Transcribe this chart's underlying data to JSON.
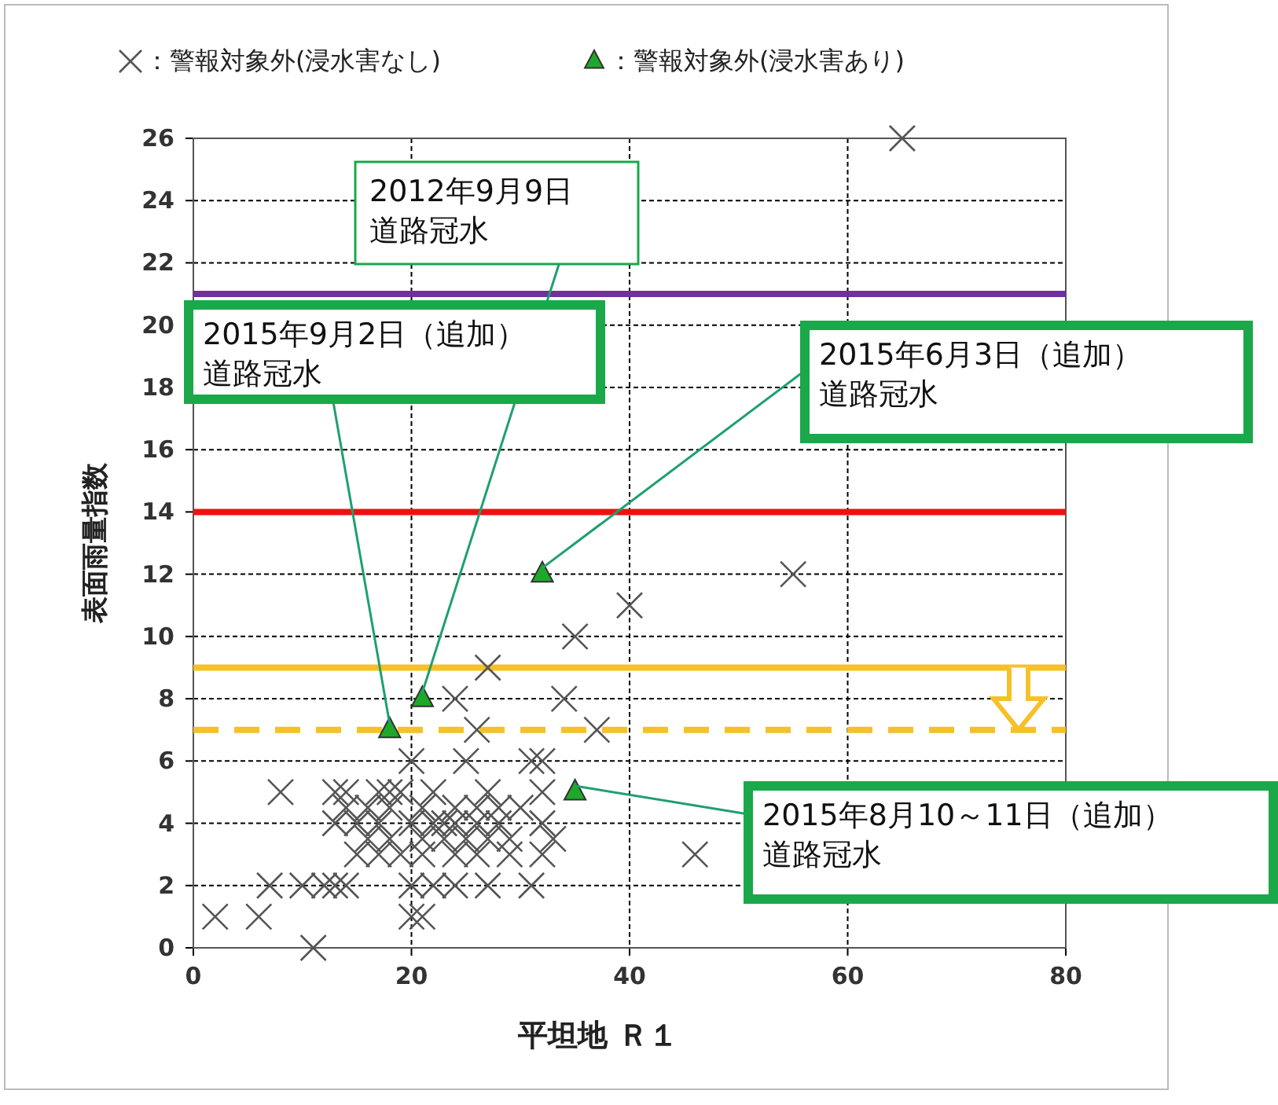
{
  "chart_data": {
    "type": "scatter",
    "xlabel": "平坦地 Ｒ１",
    "ylabel": "表面雨量指数",
    "xlim": [
      0,
      80
    ],
    "xticks": [
      0,
      20,
      40,
      60,
      80
    ],
    "ylim": [
      0,
      26
    ],
    "yticks": [
      0,
      2,
      4,
      6,
      8,
      10,
      12,
      14,
      16,
      18,
      20,
      22,
      24,
      26
    ],
    "grid": true,
    "legend": "top",
    "series": [
      {
        "name": "：警報対象外(浸水害なし)",
        "color": "#555555",
        "marker": "cross",
        "x": [
          65,
          55,
          40,
          35,
          27,
          24,
          34,
          26,
          37,
          20,
          25,
          31,
          32,
          46,
          8,
          13,
          14,
          17,
          18,
          19,
          22,
          27,
          32,
          14,
          16,
          18,
          21,
          24,
          26,
          28,
          30,
          13,
          15,
          17,
          20,
          22,
          23,
          24,
          26,
          28,
          32,
          16,
          18,
          21,
          23,
          25,
          27,
          29,
          33,
          15,
          17,
          19,
          21,
          24,
          26,
          29,
          32,
          7,
          10,
          12,
          13,
          14,
          20,
          22,
          24,
          27,
          31,
          2,
          6,
          20,
          21,
          11
        ],
        "values": [
          26,
          12,
          11,
          10,
          9,
          8,
          8,
          7,
          7,
          6,
          6,
          6,
          6,
          3,
          5,
          5,
          5,
          5,
          5,
          5,
          5,
          5,
          5,
          4.5,
          4.5,
          4.5,
          4.5,
          4.5,
          4.5,
          4.5,
          4.5,
          4,
          4,
          4,
          4,
          4,
          4,
          4,
          4,
          4,
          4,
          3.5,
          3.5,
          3.5,
          3.5,
          3.5,
          3.5,
          3.5,
          3.5,
          3,
          3,
          3,
          3,
          3,
          3,
          3,
          3,
          2,
          2,
          2,
          2,
          2,
          2,
          2,
          2,
          2,
          2,
          1,
          1,
          1,
          1,
          0
        ]
      },
      {
        "name": "：警報対象外(浸水害あり)",
        "color": "#1ea82a",
        "marker": "triangle",
        "x": [
          18,
          21,
          32,
          35
        ],
        "values": [
          7,
          8,
          12,
          5
        ]
      }
    ],
    "ref_lines": [
      {
        "axis": "y",
        "value": 21,
        "color": "#7030a0",
        "line_style": "solid"
      },
      {
        "axis": "y",
        "value": 14,
        "color": "#ee1111",
        "line_style": "solid"
      },
      {
        "axis": "y",
        "value": 9,
        "color": "#f5c12a",
        "line_style": "solid"
      },
      {
        "axis": "y",
        "value": 7,
        "color": "#f5c12a",
        "line_style": "dashed"
      }
    ],
    "annotations": [
      {
        "text": "2012年9月9日道路冠水",
        "x": 21,
        "y": 8
      },
      {
        "text": "2015年9月2日（追加）道路冠水",
        "x": 18,
        "y": 7
      },
      {
        "text": "2015年6月3日（追加）道路冠水",
        "x": 32,
        "y": 12
      },
      {
        "text": "2015年8月10～11日（追加）道路冠水",
        "x": 35,
        "y": 5
      }
    ]
  }
}
